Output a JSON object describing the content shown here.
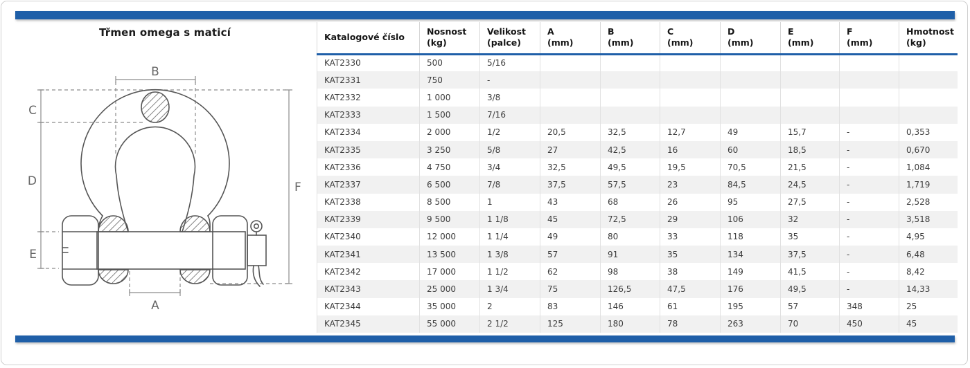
{
  "page": {
    "title": "Třmen omega s maticí"
  },
  "colors": {
    "accent": "#1f5fa8",
    "row_alt": "#f1f1f1",
    "grid_line": "#e1e1e1"
  },
  "diagram": {
    "name": "bow-shackle-with-safety-bolt-drawing",
    "labels": {
      "a": "A",
      "b": "B",
      "c": "C",
      "d": "D",
      "e": "E",
      "f": "F"
    }
  },
  "table": {
    "columns": [
      {
        "label": "Katalogové číslo",
        "unit": ""
      },
      {
        "label": "Nosnost",
        "unit": "(kg)"
      },
      {
        "label": "Velikost",
        "unit": "(palce)"
      },
      {
        "label": "A",
        "unit": "(mm)"
      },
      {
        "label": "B",
        "unit": "(mm)"
      },
      {
        "label": "C",
        "unit": "(mm)"
      },
      {
        "label": "D",
        "unit": "(mm)"
      },
      {
        "label": "E",
        "unit": "(mm)"
      },
      {
        "label": "F",
        "unit": "(mm)"
      },
      {
        "label": "Hmotnost",
        "unit": "(kg)"
      }
    ],
    "rows": [
      [
        "KAT2330",
        "500",
        "5/16",
        "",
        "",
        "",
        "",
        "",
        "",
        ""
      ],
      [
        "KAT2331",
        "750",
        "-",
        "",
        "",
        "",
        "",
        "",
        "",
        ""
      ],
      [
        "KAT2332",
        "1 000",
        "3/8",
        "",
        "",
        "",
        "",
        "",
        "",
        ""
      ],
      [
        "KAT2333",
        "1 500",
        "7/16",
        "",
        "",
        "",
        "",
        "",
        "",
        ""
      ],
      [
        "KAT2334",
        "2 000",
        "1/2",
        "20,5",
        "32,5",
        "12,7",
        "49",
        "15,7",
        "-",
        "0,353"
      ],
      [
        "KAT2335",
        "3 250",
        "5/8",
        "27",
        "42,5",
        "16",
        "60",
        "18,5",
        "-",
        "0,670"
      ],
      [
        "KAT2336",
        "4 750",
        "3/4",
        "32,5",
        "49,5",
        "19,5",
        "70,5",
        "21,5",
        "-",
        "1,084"
      ],
      [
        "KAT2337",
        "6 500",
        "7/8",
        "37,5",
        "57,5",
        "23",
        "84,5",
        "24,5",
        "-",
        "1,719"
      ],
      [
        "KAT2338",
        "8 500",
        "1",
        "43",
        "68",
        "26",
        "95",
        "27,5",
        "-",
        "2,528"
      ],
      [
        "KAT2339",
        "9 500",
        "1 1/8",
        "45",
        "72,5",
        "29",
        "106",
        "32",
        "-",
        "3,518"
      ],
      [
        "KAT2340",
        "12 000",
        "1 1/4",
        "49",
        "80",
        "33",
        "118",
        "35",
        "-",
        "4,95"
      ],
      [
        "KAT2341",
        "13 500",
        "1 3/8",
        "57",
        "91",
        "35",
        "134",
        "37,5",
        "-",
        "6,48"
      ],
      [
        "KAT2342",
        "17 000",
        "1 1/2",
        "62",
        "98",
        "38",
        "149",
        "41,5",
        "-",
        "8,42"
      ],
      [
        "KAT2343",
        "25 000",
        "1 3/4",
        "75",
        "126,5",
        "47,5",
        "176",
        "49,5",
        "-",
        "14,33"
      ],
      [
        "KAT2344",
        "35 000",
        "2",
        "83",
        "146",
        "61",
        "195",
        "57",
        "348",
        "25"
      ],
      [
        "KAT2345",
        "55 000",
        "2 1/2",
        "125",
        "180",
        "78",
        "263",
        "70",
        "450",
        "45"
      ]
    ]
  }
}
